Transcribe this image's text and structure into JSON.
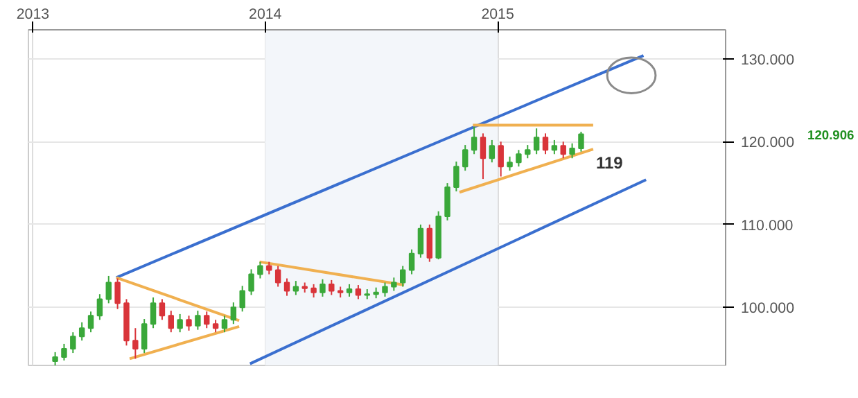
{
  "chart_data": {
    "type": "candlestick",
    "x": [
      "2013-02-05",
      "2013-02-19",
      "2013-03-05",
      "2013-03-19",
      "2013-04-02",
      "2013-04-16",
      "2013-04-30",
      "2013-05-14",
      "2013-05-28",
      "2013-06-11",
      "2013-06-25",
      "2013-07-09",
      "2013-07-23",
      "2013-08-06",
      "2013-08-20",
      "2013-09-03",
      "2013-09-17",
      "2013-10-01",
      "2013-10-15",
      "2013-10-29",
      "2013-11-12",
      "2013-11-26",
      "2013-12-10",
      "2013-12-24",
      "2014-01-07",
      "2014-01-21",
      "2014-02-04",
      "2014-02-18",
      "2014-03-04",
      "2014-03-18",
      "2014-04-01",
      "2014-04-15",
      "2014-04-29",
      "2014-05-13",
      "2014-05-27",
      "2014-06-10",
      "2014-06-24",
      "2014-07-08",
      "2014-07-22",
      "2014-08-05",
      "2014-08-19",
      "2014-09-02",
      "2014-09-16",
      "2014-09-30",
      "2014-10-14",
      "2014-10-28",
      "2014-11-11",
      "2014-11-25",
      "2014-12-09",
      "2014-12-23",
      "2015-01-06",
      "2015-01-20",
      "2015-02-03",
      "2015-02-17",
      "2015-03-03",
      "2015-03-17",
      "2015-03-31",
      "2015-04-14",
      "2015-04-28",
      "2015-05-12"
    ],
    "ohlc": [
      [
        93.5,
        94.6,
        93.0,
        94
      ],
      [
        94,
        95.6,
        93.6,
        95
      ],
      [
        95,
        97.0,
        94.5,
        96.5
      ],
      [
        96.5,
        98.2,
        96.0,
        97.5
      ],
      [
        97.5,
        99.5,
        97.0,
        99
      ],
      [
        99,
        101.6,
        98.5,
        101
      ],
      [
        101,
        103.8,
        100.5,
        103
      ],
      [
        103,
        103.5,
        99.8,
        100.5
      ],
      [
        100.5,
        101.0,
        95.4,
        96
      ],
      [
        96,
        97.5,
        93.8,
        95
      ],
      [
        95,
        98.6,
        94.5,
        98
      ],
      [
        98,
        101.2,
        97.5,
        100.5
      ],
      [
        100.5,
        101.0,
        98.5,
        99
      ],
      [
        99,
        99.6,
        97.0,
        97.5
      ],
      [
        97.5,
        99.2,
        97.0,
        98.5
      ],
      [
        98.5,
        99.0,
        97.2,
        97.8
      ],
      [
        97.8,
        99.6,
        97.3,
        99
      ],
      [
        99,
        99.5,
        97.5,
        98
      ],
      [
        98,
        98.5,
        97.0,
        97.5
      ],
      [
        97.5,
        99.0,
        97.0,
        98.5
      ],
      [
        98.5,
        100.6,
        98.0,
        100
      ],
      [
        100,
        102.6,
        99.5,
        102
      ],
      [
        102,
        104.6,
        101.5,
        104
      ],
      [
        104,
        105.5,
        103.5,
        105
      ],
      [
        105,
        105.5,
        104.0,
        104.5
      ],
      [
        104.5,
        105.0,
        102.5,
        103
      ],
      [
        103,
        103.5,
        101.4,
        102
      ],
      [
        102,
        103.2,
        101.5,
        102.5
      ],
      [
        102.5,
        103.0,
        101.8,
        102.3
      ],
      [
        102.3,
        102.8,
        101.2,
        101.8
      ],
      [
        101.8,
        103.4,
        101.3,
        102.8
      ],
      [
        102.8,
        103.3,
        101.5,
        102
      ],
      [
        102,
        102.5,
        101.2,
        101.8
      ],
      [
        101.8,
        102.8,
        101.3,
        102.2
      ],
      [
        102.2,
        102.7,
        101.0,
        101.5
      ],
      [
        101.5,
        102.2,
        101.0,
        101.6
      ],
      [
        101.6,
        102.4,
        101.1,
        101.8
      ],
      [
        101.8,
        103.0,
        101.3,
        102.5
      ],
      [
        102.5,
        103.6,
        102.0,
        103
      ],
      [
        103,
        105.0,
        102.5,
        104.5
      ],
      [
        104.5,
        107.0,
        104.0,
        106.5
      ],
      [
        106.5,
        110.0,
        106.0,
        109.5
      ],
      [
        109.5,
        110.0,
        105.5,
        106
      ],
      [
        106,
        111.6,
        105.8,
        111
      ],
      [
        111,
        115.0,
        110.5,
        114.5
      ],
      [
        114.5,
        117.6,
        114.0,
        117
      ],
      [
        117,
        119.6,
        116.5,
        119
      ],
      [
        119,
        121.8,
        118.5,
        120.5
      ],
      [
        120.5,
        121.0,
        115.5,
        118
      ],
      [
        118,
        120.2,
        117.5,
        119.5
      ],
      [
        119.5,
        120.0,
        115.8,
        117
      ],
      [
        117,
        118.2,
        116.5,
        117.5
      ],
      [
        117.5,
        119.0,
        117.0,
        118.5
      ],
      [
        118.5,
        119.6,
        118.0,
        119
      ],
      [
        119,
        121.6,
        118.5,
        120.5
      ],
      [
        120.5,
        121.0,
        118.5,
        119
      ],
      [
        119,
        120.2,
        118.5,
        119.5
      ],
      [
        119.5,
        120.0,
        118.0,
        118.5
      ],
      [
        118.5,
        119.8,
        118.0,
        119.2
      ],
      [
        119.2,
        121.2,
        118.8,
        120.9
      ]
    ],
    "colors": [
      "#3aa83a",
      "#3aa83a",
      "#3aa83a",
      "#3aa83a",
      "#3aa83a",
      "#3aa83a",
      "#3aa83a",
      "#d9343a",
      "#d9343a",
      "#d9343a",
      "#3aa83a",
      "#3aa83a",
      "#d9343a",
      "#d9343a",
      "#3aa83a",
      "#d9343a",
      "#3aa83a",
      "#d9343a",
      "#d9343a",
      "#3aa83a",
      "#3aa83a",
      "#3aa83a",
      "#3aa83a",
      "#3aa83a",
      "#d9343a",
      "#d9343a",
      "#d9343a",
      "#3aa83a",
      "#d9343a",
      "#d9343a",
      "#3aa83a",
      "#d9343a",
      "#d9343a",
      "#3aa83a",
      "#d9343a",
      "#3aa83a",
      "#3aa83a",
      "#3aa83a",
      "#3aa83a",
      "#3aa83a",
      "#3aa83a",
      "#3aa83a",
      "#d9343a",
      "#3aa83a",
      "#3aa83a",
      "#3aa83a",
      "#3aa83a",
      "#3aa83a",
      "#d9343a",
      "#3aa83a",
      "#d9343a",
      "#3aa83a",
      "#3aa83a",
      "#3aa83a",
      "#3aa83a",
      "#d9343a",
      "#3aa83a",
      "#d9343a",
      "#3aa83a",
      "#3aa83a"
    ],
    "series": [
      {
        "type": "line",
        "color": "#3a6fcf",
        "x": [
          "2013-05-12",
          "2015-08-18"
        ],
        "values": [
          103.6,
          130.4
        ]
      },
      {
        "type": "line",
        "color": "#3a6fcf",
        "x": [
          "2013-12-08",
          "2015-08-22"
        ],
        "values": [
          93.2,
          115.4
        ]
      },
      {
        "type": "line",
        "color": "#f0b050",
        "x": [
          "2013-05-12",
          "2013-11-21"
        ],
        "values": [
          103.6,
          98.4
        ]
      },
      {
        "type": "line",
        "color": "#f0b050",
        "x": [
          "2013-06-02",
          "2013-11-21"
        ],
        "values": [
          93.8,
          97.7
        ]
      },
      {
        "type": "line",
        "color": "#f0b050",
        "x": [
          "2013-12-23",
          "2014-08-07"
        ],
        "values": [
          105.5,
          102.7
        ]
      },
      {
        "type": "line",
        "color": "#f0b050",
        "x": [
          "2014-11-23",
          "2015-05-31"
        ],
        "values": [
          122,
          122
        ]
      },
      {
        "type": "line",
        "color": "#f0b050",
        "x": [
          "2014-11-02",
          "2015-05-31"
        ],
        "values": [
          113.9,
          119.1
        ]
      }
    ],
    "bands": [
      {
        "axis": "x",
        "from": "2014-01-01",
        "to": "2015-01-01",
        "color": "#f3f6fa"
      }
    ],
    "annotations": [
      {
        "text": "119",
        "x": "2015-05-31",
        "y": 119.1
      },
      "120.906"
    ],
    "xlim": [
      "2012-12-25",
      "2015-12-25"
    ],
    "xticks": [
      {
        "value": "2013-01-01",
        "label": "2013"
      },
      {
        "value": "2014-01-01",
        "label": "2014"
      },
      {
        "value": "2015-01-01",
        "label": "2015"
      }
    ],
    "ylim": [
      93,
      133.5
    ],
    "yticks": [
      {
        "value": 100,
        "label": "100.000"
      },
      {
        "value": 110,
        "label": "110.000"
      },
      {
        "value": 120,
        "label": "120.000"
      },
      {
        "value": 130,
        "label": "130.000"
      }
    ],
    "grid": true
  }
}
